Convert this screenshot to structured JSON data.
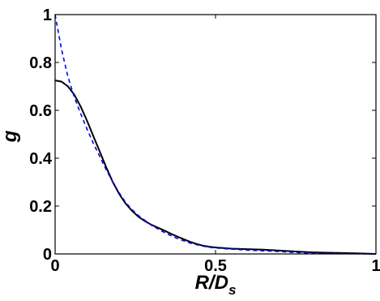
{
  "chart_data": {
    "type": "line",
    "title": "",
    "xlabel": "R/D",
    "xlabel_sub": "s",
    "ylabel": "g",
    "xlim": [
      0,
      1
    ],
    "ylim": [
      0,
      1
    ],
    "xticks": [
      {
        "value": 0,
        "label": "0"
      },
      {
        "value": 0.5,
        "label": "0.5"
      },
      {
        "value": 1,
        "label": "1"
      }
    ],
    "yticks": [
      {
        "value": 0,
        "label": "0"
      },
      {
        "value": 0.2,
        "label": "0.2"
      },
      {
        "value": 0.4,
        "label": "0.4"
      },
      {
        "value": 0.6,
        "label": "0.6"
      },
      {
        "value": 0.8,
        "label": "0.8"
      },
      {
        "value": 1,
        "label": "1"
      }
    ],
    "grid": false,
    "series": [
      {
        "style": "solid",
        "color": "#000000",
        "x": [
          0,
          0.02,
          0.04,
          0.06,
          0.08,
          0.1,
          0.12,
          0.14,
          0.16,
          0.18,
          0.2,
          0.22,
          0.24,
          0.26,
          0.28,
          0.3,
          0.32,
          0.34,
          0.36,
          0.38,
          0.4,
          0.42,
          0.44,
          0.46,
          0.48,
          0.5,
          0.55,
          0.6,
          0.65,
          0.7,
          0.75,
          0.8,
          0.85,
          0.9,
          0.95,
          1.0
        ],
        "y": [
          0.725,
          0.72,
          0.7,
          0.665,
          0.615,
          0.555,
          0.49,
          0.425,
          0.36,
          0.3,
          0.25,
          0.21,
          0.18,
          0.155,
          0.137,
          0.122,
          0.11,
          0.098,
          0.085,
          0.073,
          0.062,
          0.051,
          0.042,
          0.035,
          0.03,
          0.027,
          0.022,
          0.02,
          0.018,
          0.014,
          0.01,
          0.007,
          0.005,
          0.004,
          0.002,
          0.0
        ]
      },
      {
        "style": "dashed",
        "color": "#0000ff",
        "x": [
          0,
          0.02,
          0.04,
          0.06,
          0.08,
          0.1,
          0.12,
          0.14,
          0.16,
          0.18,
          0.2,
          0.22,
          0.24,
          0.26,
          0.28,
          0.3,
          0.32,
          0.34,
          0.36,
          0.38,
          0.4,
          0.42,
          0.44,
          0.46,
          0.48,
          0.5,
          0.55,
          0.6,
          0.65,
          0.7,
          0.75,
          0.8,
          0.85,
          0.9,
          0.95,
          1.0
        ],
        "y": [
          1.0,
          0.855,
          0.74,
          0.655,
          0.585,
          0.52,
          0.46,
          0.405,
          0.35,
          0.3,
          0.255,
          0.215,
          0.185,
          0.16,
          0.14,
          0.12,
          0.105,
          0.09,
          0.077,
          0.065,
          0.055,
          0.046,
          0.039,
          0.033,
          0.028,
          0.025,
          0.02,
          0.016,
          0.013,
          0.01,
          0.006,
          0.003,
          0.002,
          0.001,
          0.0005,
          0.0
        ]
      }
    ]
  }
}
